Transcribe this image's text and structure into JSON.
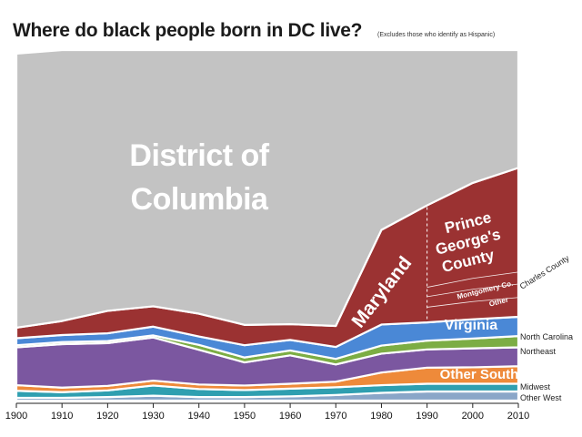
{
  "header": {
    "title": "Where do black people born in DC live?",
    "subtitle": "(Excludes those who identify as Hispanic)"
  },
  "chart_data": {
    "type": "area",
    "stacked": true,
    "title": "Where do black people born in DC live?",
    "subtitle": "(Excludes those who identify as Hispanic)",
    "x": [
      1900,
      1910,
      1920,
      1930,
      1940,
      1950,
      1960,
      1970,
      1980,
      1990,
      2000,
      2010
    ],
    "x_ticks": [
      "1900",
      "1910",
      "1920",
      "1930",
      "1940",
      "1950",
      "1960",
      "1970",
      "1980",
      "1990",
      "2000",
      "2010"
    ],
    "ylim": [
      0,
      100
    ],
    "y_unit": "percent",
    "divider_year": 1990,
    "series": [
      {
        "name": "Other West",
        "color": "#8aa6c8",
        "values": [
          0.8,
          0.8,
          1.0,
          1.4,
          1.0,
          1.0,
          1.2,
          1.6,
          2.2,
          2.6,
          2.6,
          2.6
        ]
      },
      {
        "name": "Midwest",
        "color": "#2f9fb0",
        "values": [
          2.0,
          1.6,
          1.9,
          2.9,
          2.3,
          2.0,
          2.2,
          2.2,
          2.2,
          2.2,
          2.2,
          2.2
        ]
      },
      {
        "name": "Other South",
        "color": "#ee8a3a",
        "values": [
          1.6,
          1.3,
          1.3,
          1.4,
          1.3,
          1.3,
          1.4,
          1.6,
          3.6,
          4.6,
          4.7,
          5.0
        ]
      },
      {
        "name": "Northeast",
        "color": "#7b57a0",
        "values": [
          10.8,
          12.4,
          12.2,
          12.3,
          9.9,
          6.6,
          8.1,
          4.9,
          5.4,
          5.2,
          5.4,
          5.4
        ]
      },
      {
        "name": "North Carolina",
        "color": "#7cad44",
        "values": [
          0.6,
          0.6,
          0.6,
          0.6,
          1.4,
          1.4,
          1.4,
          1.6,
          2.3,
          2.5,
          2.8,
          3.2
        ]
      },
      {
        "name": "Virginia",
        "color": "#4a88d6",
        "values": [
          2.0,
          2.0,
          2.2,
          2.5,
          2.4,
          3.5,
          3.0,
          3.4,
          6.0,
          5.2,
          5.5,
          5.5
        ]
      },
      {
        "name": "Maryland",
        "color": "#9b3232",
        "values": [
          3.0,
          4.0,
          6.4,
          5.8,
          6.5,
          5.8,
          4.5,
          6.0,
          27.0,
          33.4,
          38.9,
          42.5
        ]
      },
      {
        "name": "District of Columbia",
        "color": "#c3c3c3",
        "values": [
          78.2,
          77.3,
          74.4,
          73.1,
          75.2,
          78.4,
          78.2,
          78.7,
          51.3,
          44.3,
          37.9,
          33.6
        ]
      }
    ],
    "area_labels": {
      "dc": [
        "District of",
        "Columbia"
      ],
      "maryland": "Maryland",
      "pg_county": [
        "Prince",
        "George's",
        "County"
      ],
      "montgomery": "Montgomery Co.",
      "md_other": "Other",
      "charles_county": "Charles County",
      "virginia": "Virginia",
      "north_carolina": "North Carolina",
      "northeast": "Northeast",
      "other_south": "Other South",
      "midwest": "Midwest",
      "other_west": "Other West"
    },
    "grid": false,
    "legend": "none"
  }
}
